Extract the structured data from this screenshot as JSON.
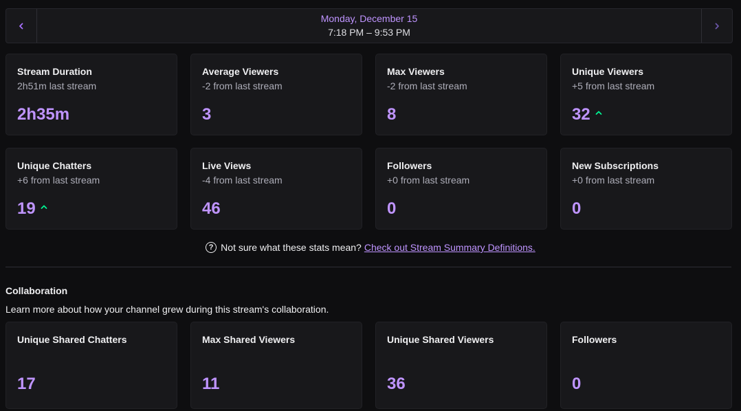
{
  "datebar": {
    "date": "Monday, December 15",
    "time": "7:18 PM – 9:53 PM",
    "prev_icon": "chevron-left-icon",
    "next_icon": "chevron-right-icon"
  },
  "stats": [
    {
      "title": "Stream Duration",
      "sub": "2h51m last stream",
      "value": "2h35m",
      "trend": "none"
    },
    {
      "title": "Average Viewers",
      "sub": "-2 from last stream",
      "value": "3",
      "trend": "none"
    },
    {
      "title": "Max Viewers",
      "sub": "-2 from last stream",
      "value": "8",
      "trend": "none"
    },
    {
      "title": "Unique Viewers",
      "sub": "+5 from last stream",
      "value": "32",
      "trend": "up"
    },
    {
      "title": "Unique Chatters",
      "sub": "+6 from last stream",
      "value": "19",
      "trend": "up"
    },
    {
      "title": "Live Views",
      "sub": "-4 from last stream",
      "value": "46",
      "trend": "none"
    },
    {
      "title": "Followers",
      "sub": "+0 from last stream",
      "value": "0",
      "trend": "none"
    },
    {
      "title": "New Subscriptions",
      "sub": "+0 from last stream",
      "value": "0",
      "trend": "none"
    }
  ],
  "help": {
    "text": "Not sure what these stats mean?",
    "link": "Check out Stream Summary Definitions."
  },
  "collaboration": {
    "title": "Collaboration",
    "description": "Learn more about how your channel grew during this stream's collaboration.",
    "stats": [
      {
        "title": "Unique Shared Chatters",
        "value": "17"
      },
      {
        "title": "Max Shared Viewers",
        "value": "11"
      },
      {
        "title": "Unique Shared Viewers",
        "value": "36"
      },
      {
        "title": "Followers",
        "value": "0"
      }
    ]
  },
  "colors": {
    "accent": "#bf94ff",
    "up_arrow": "#00f593",
    "card_bg": "#18181b",
    "page_bg": "#0e0e10"
  }
}
